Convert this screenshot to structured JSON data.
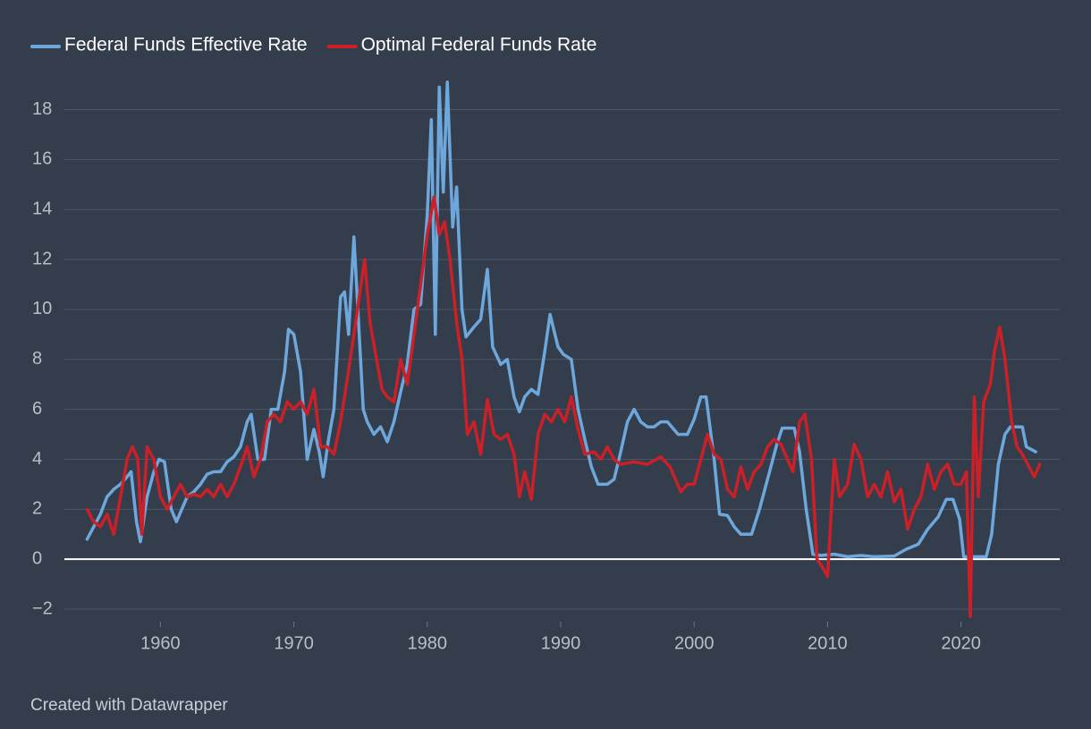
{
  "chart_data": {
    "type": "line",
    "credit": "Created with Datawrapper",
    "xlim": [
      1952.8,
      2027.4
    ],
    "ylim": [
      -2.5,
      19.2
    ],
    "xticks": [
      1960,
      1970,
      1980,
      1990,
      2000,
      2010,
      2020
    ],
    "yticks": [
      {
        "value": -2,
        "label": "−2"
      },
      0,
      2,
      4,
      6,
      8,
      10,
      12,
      14,
      16,
      18
    ],
    "grid": true,
    "legend": "top",
    "series": [
      {
        "name": "Federal Funds Effective Rate",
        "color": "#6ea7dc",
        "x": [
          1954.5,
          1955,
          1955.5,
          1956,
          1956.5,
          1957,
          1957.5,
          1957.8,
          1958.2,
          1958.5,
          1959,
          1959.5,
          1959.9,
          1960.3,
          1960.8,
          1961.2,
          1961.6,
          1962,
          1962.5,
          1963,
          1963.5,
          1964,
          1964.5,
          1965,
          1965.5,
          1966,
          1966.5,
          1966.8,
          1967.3,
          1967.8,
          1968.3,
          1968.8,
          1969.3,
          1969.6,
          1970,
          1970.5,
          1971,
          1971.5,
          1971.9,
          1972.2,
          1972.6,
          1973,
          1973.5,
          1973.8,
          1974.1,
          1974.5,
          1974.8,
          1975.2,
          1975.5,
          1976,
          1976.5,
          1977,
          1977.5,
          1978,
          1978.5,
          1979,
          1979.5,
          1980,
          1980.3,
          1980.6,
          1980.9,
          1981.2,
          1981.5,
          1981.9,
          1982.2,
          1982.6,
          1982.9,
          1983.5,
          1984,
          1984.5,
          1984.9,
          1985.5,
          1986,
          1986.5,
          1986.9,
          1987.3,
          1987.8,
          1988.3,
          1988.8,
          1989.2,
          1989.8,
          1990.2,
          1990.8,
          1991.3,
          1991.8,
          1992.3,
          1992.8,
          1993.5,
          1994,
          1994.5,
          1995,
          1995.5,
          1996,
          1996.5,
          1997,
          1997.5,
          1998,
          1998.8,
          1999.5,
          2000,
          2000.5,
          2000.9,
          2001.5,
          2001.9,
          2002.5,
          2003,
          2003.5,
          2004.3,
          2004.9,
          2005.5,
          2006.2,
          2006.6,
          2007.5,
          2007.9,
          2008.4,
          2008.9,
          2009.5,
          2010.5,
          2011.5,
          2012.5,
          2013.5,
          2015,
          2015.9,
          2016.8,
          2017.5,
          2018.3,
          2018.9,
          2019.4,
          2019.9,
          2020.2,
          2021,
          2021.9,
          2022.3,
          2022.8,
          2023.3,
          2023.7,
          2024.6,
          2024.9,
          2025.6
        ],
        "values": [
          0.8,
          1.3,
          1.8,
          2.5,
          2.8,
          3.0,
          3.3,
          3.5,
          1.5,
          0.7,
          2.5,
          3.5,
          4.0,
          3.9,
          2.0,
          1.5,
          2.0,
          2.5,
          2.7,
          3.0,
          3.4,
          3.5,
          3.5,
          3.9,
          4.1,
          4.5,
          5.5,
          5.8,
          4.0,
          4.0,
          6.0,
          6.0,
          7.5,
          9.2,
          9.0,
          7.5,
          4.0,
          5.2,
          4.3,
          3.3,
          4.8,
          6.0,
          10.5,
          10.7,
          9.0,
          12.9,
          10.0,
          6.0,
          5.5,
          5.0,
          5.3,
          4.7,
          5.5,
          6.7,
          7.8,
          10.0,
          10.2,
          13.8,
          17.6,
          9.0,
          18.9,
          14.7,
          19.1,
          13.3,
          14.9,
          10.0,
          8.9,
          9.3,
          9.6,
          11.6,
          8.5,
          7.8,
          8.0,
          6.5,
          5.9,
          6.5,
          6.8,
          6.6,
          8.3,
          9.8,
          8.5,
          8.2,
          8.0,
          6.0,
          4.8,
          3.7,
          3.0,
          3.0,
          3.2,
          4.3,
          5.5,
          6.0,
          5.5,
          5.3,
          5.3,
          5.5,
          5.5,
          5.0,
          5.0,
          5.6,
          6.5,
          6.5,
          4.0,
          1.8,
          1.75,
          1.3,
          1.0,
          1.0,
          2.0,
          3.2,
          4.6,
          5.25,
          5.25,
          4.3,
          2.0,
          0.2,
          0.15,
          0.2,
          0.1,
          0.15,
          0.1,
          0.13,
          0.4,
          0.6,
          1.2,
          1.7,
          2.4,
          2.4,
          1.6,
          0.1,
          0.1,
          0.1,
          1.0,
          3.8,
          5.0,
          5.3,
          5.3,
          4.5,
          4.3
        ]
      },
      {
        "name": "Optimal Federal Funds Rate",
        "color": "#cc2028",
        "x": [
          1954.5,
          1955,
          1955.5,
          1956,
          1956.5,
          1957,
          1957.5,
          1957.9,
          1958.3,
          1958.6,
          1959,
          1959.5,
          1960,
          1960.5,
          1961,
          1961.5,
          1962,
          1962.5,
          1963,
          1963.5,
          1964,
          1964.5,
          1965,
          1965.5,
          1966,
          1966.5,
          1967,
          1967.5,
          1968,
          1968.5,
          1969,
          1969.5,
          1970,
          1970.5,
          1971,
          1971.5,
          1972,
          1972.5,
          1973,
          1973.5,
          1974,
          1974.5,
          1974.9,
          1975.3,
          1975.7,
          1976.2,
          1976.6,
          1977,
          1977.5,
          1978,
          1978.5,
          1979,
          1979.5,
          1980,
          1980.5,
          1980.9,
          1981.3,
          1981.7,
          1982.2,
          1982.6,
          1983,
          1983.5,
          1984,
          1984.5,
          1985,
          1985.5,
          1986,
          1986.5,
          1986.9,
          1987.3,
          1987.8,
          1988.3,
          1988.8,
          1989.3,
          1989.8,
          1990.3,
          1990.8,
          1991.3,
          1991.8,
          1992.5,
          1993,
          1993.5,
          1994,
          1994.5,
          1995.5,
          1996.5,
          1997.5,
          1998.2,
          1999,
          1999.5,
          2000,
          2000.5,
          2001,
          2001.5,
          2002,
          2002.5,
          2003,
          2003.5,
          2004,
          2004.5,
          2005,
          2005.5,
          2006,
          2006.5,
          2007,
          2007.4,
          2007.9,
          2008.3,
          2008.8,
          2009.2,
          2009.6,
          2010,
          2010.5,
          2010.9,
          2011.5,
          2012,
          2012.5,
          2013,
          2013.5,
          2014,
          2014.5,
          2015,
          2015.5,
          2016,
          2016.5,
          2017,
          2017.5,
          2018,
          2018.5,
          2019,
          2019.5,
          2020,
          2020.4,
          2020.7,
          2021,
          2021.3,
          2021.7,
          2022.2,
          2022.5,
          2022.9,
          2023.3,
          2023.8,
          2024.2,
          2024.6,
          2025,
          2025.5,
          2025.9
        ],
        "values": [
          2.0,
          1.5,
          1.3,
          1.8,
          1.0,
          2.5,
          4.0,
          4.5,
          4.0,
          1.0,
          4.5,
          4.0,
          2.5,
          2.0,
          2.5,
          3.0,
          2.5,
          2.6,
          2.5,
          2.8,
          2.5,
          3.0,
          2.5,
          3.0,
          3.7,
          4.5,
          3.3,
          4.0,
          5.5,
          5.8,
          5.5,
          6.3,
          6.0,
          6.3,
          5.8,
          6.8,
          4.5,
          4.5,
          4.2,
          5.5,
          7.2,
          9.0,
          10.5,
          12.0,
          9.5,
          8.0,
          6.8,
          6.5,
          6.3,
          8.0,
          7.0,
          9.0,
          11.0,
          13.0,
          14.5,
          13.0,
          13.5,
          12.0,
          9.5,
          8.0,
          5.0,
          5.5,
          4.2,
          6.4,
          5.0,
          4.8,
          5.0,
          4.2,
          2.5,
          3.5,
          2.4,
          5.0,
          5.8,
          5.5,
          6.0,
          5.5,
          6.5,
          5.2,
          4.2,
          4.3,
          4.0,
          4.5,
          4.0,
          3.8,
          3.9,
          3.8,
          4.1,
          3.7,
          2.7,
          3.0,
          3.0,
          4.0,
          5.0,
          4.2,
          4.0,
          2.8,
          2.5,
          3.7,
          2.8,
          3.5,
          3.8,
          4.5,
          4.8,
          4.6,
          4.0,
          3.5,
          5.5,
          5.8,
          4.0,
          0.0,
          -0.3,
          -0.7,
          4.0,
          2.5,
          3.0,
          4.6,
          4.0,
          2.5,
          3.0,
          2.5,
          3.5,
          2.3,
          2.8,
          1.2,
          2.0,
          2.5,
          3.8,
          2.8,
          3.5,
          3.8,
          3.0,
          3.0,
          3.5,
          -2.3,
          6.5,
          2.5,
          6.3,
          7.0,
          8.3,
          9.3,
          8.0,
          5.5,
          4.5,
          4.2,
          3.8,
          3.3,
          3.8
        ]
      }
    ]
  }
}
